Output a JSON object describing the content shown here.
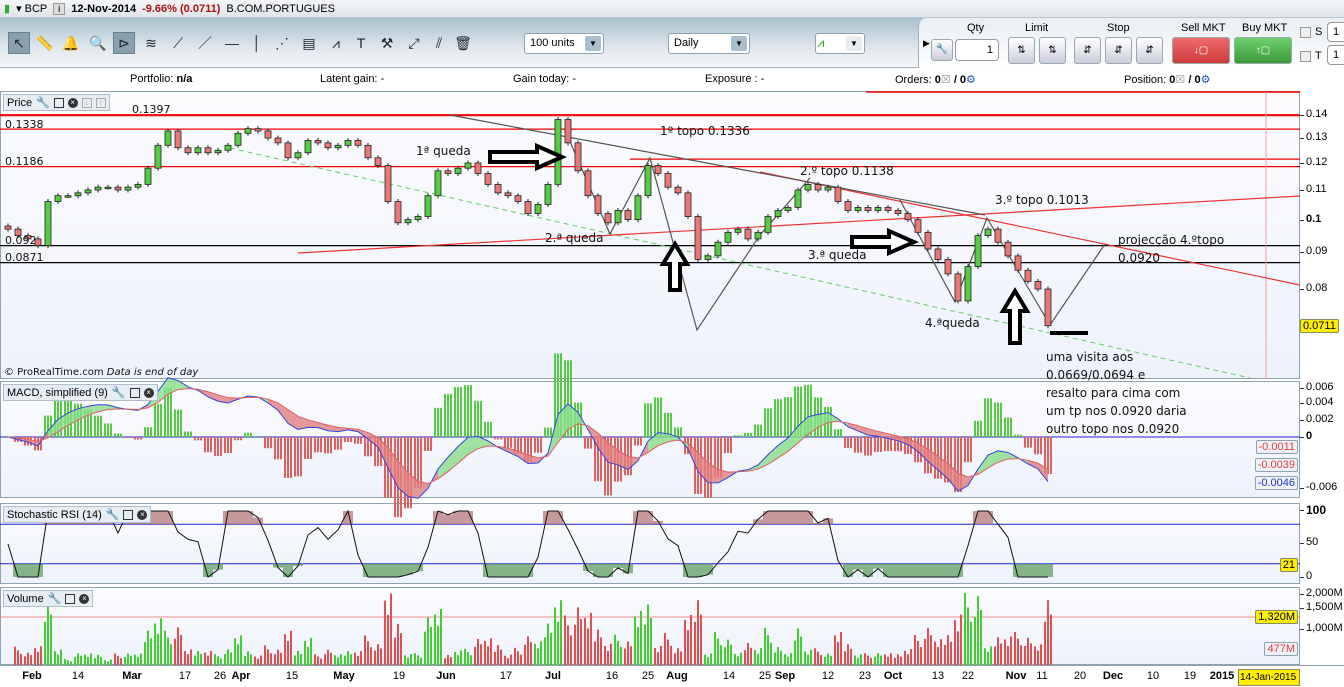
{
  "titlebar": {
    "symbol": "BCP",
    "date": "12-Nov-2014",
    "change": "-9.66% (0.0711)",
    "name": "B.COM.PORTUGUES"
  },
  "toolbar": {
    "tools": [
      "pointer-icon",
      "ruler-icon",
      "alert-bell-icon",
      "zoom-icon",
      "triangle-pattern-icon",
      "channel-icon",
      "segment-icon",
      "line-icon",
      "horizontal-line-icon",
      "vertical-line-icon",
      "fibonacci-fan-icon",
      "indicator-icon",
      "trend-icon",
      "text-icon",
      "tools-icon",
      "arrow-icon",
      "parallel-line-icon",
      "trash-icon"
    ],
    "units": "100 units",
    "period": "Daily"
  },
  "trade": {
    "qty_label": "Qty",
    "qty": "1",
    "limit_label": "Limit",
    "stop_label": "Stop",
    "sell_label": "Sell MKT",
    "buy_label": "Buy MKT",
    "s_label": "S",
    "t_label": "T",
    "s_value": "1",
    "t_value": "1"
  },
  "infobar": {
    "portfolio_label": "Portfolio:",
    "portfolio": "n/a",
    "latent_label": "Latent gain:",
    "latent": "-",
    "gain_label": "Gain today:",
    "gain": "-",
    "exposure_label": "Exposure :",
    "exposure": "-",
    "orders_label": "Orders:",
    "orders": "0",
    "orders_total": "/ 0",
    "position_label": "Position:",
    "position": "0",
    "position_total": "/ 0"
  },
  "price_panel": {
    "title": "Price",
    "level_labels": [
      "0.1397",
      "0.1338",
      "0.1186",
      "0.092",
      "0.0871"
    ],
    "ticks": [
      "0.14",
      "0.13",
      "0.12",
      "0.11",
      "0.1",
      "0.09",
      "0.08"
    ],
    "tick_values": [
      0.14,
      0.13,
      0.12,
      0.11,
      0.1,
      0.09,
      0.08
    ],
    "last_price": "0.0711",
    "footer": "© ProRealTime.com",
    "footer_note": "Data is end of day",
    "annotations": [
      "1ª queda",
      "1º topo 0.1336",
      "2.ª queda",
      "2.º topo 0.1138",
      "3.º topo 0.1013",
      "3.ª queda",
      "4.ªqueda",
      "projecção 4.ºtopo",
      "0.0920"
    ],
    "note_lines": [
      "uma visita aos",
      "0.0669/0.0694 e",
      "resalto para cima com",
      "um tp nos 0.0920 daria",
      "outro topo nos 0.0920"
    ]
  },
  "macd_panel": {
    "title": "MACD, simplified (9)",
    "ticks": [
      "0.006",
      "0.004",
      "0.002",
      "0",
      "-0.006"
    ],
    "tags": [
      "-0.0011",
      "-0.0039",
      "-0.0046"
    ]
  },
  "stoch_panel": {
    "title": "Stochastic RSI (14)",
    "ticks": [
      "100",
      "50",
      "0"
    ],
    "tag": "21"
  },
  "volume_panel": {
    "title": "Volume",
    "ticks": [
      "2,000M",
      "1,500M",
      "1,000M"
    ],
    "tags": [
      "1,320M",
      "477M"
    ]
  },
  "date_axis": [
    {
      "t": "Feb",
      "major": true
    },
    {
      "t": "14"
    },
    {
      "t": "Mar",
      "major": true
    },
    {
      "t": "17"
    },
    {
      "t": "26"
    },
    {
      "t": "Apr",
      "major": true
    },
    {
      "t": "15"
    },
    {
      "t": "May",
      "major": true
    },
    {
      "t": "19"
    },
    {
      "t": "Jun",
      "major": true
    },
    {
      "t": "17"
    },
    {
      "t": "Jul",
      "major": true
    },
    {
      "t": "16"
    },
    {
      "t": "25"
    },
    {
      "t": "Aug",
      "major": true
    },
    {
      "t": "14"
    },
    {
      "t": "25"
    },
    {
      "t": "Sep",
      "major": true
    },
    {
      "t": "12"
    },
    {
      "t": "23"
    },
    {
      "t": "Oct",
      "major": true
    },
    {
      "t": "13"
    },
    {
      "t": "22"
    },
    {
      "t": "Nov",
      "major": true
    },
    {
      "t": "11"
    },
    {
      "t": "20"
    },
    {
      "t": "Dec",
      "major": true
    },
    {
      "t": "10"
    },
    {
      "t": "19"
    },
    {
      "t": "2015",
      "major": true
    }
  ],
  "date_cursor": "14-Jan-2015",
  "chart_data": {
    "type": "candlestick",
    "scale": "log",
    "ylim": [
      0.066,
      0.145
    ],
    "closes": [
      0.097,
      0.095,
      0.094,
      0.092,
      0.106,
      0.108,
      0.108,
      0.109,
      0.11,
      0.111,
      0.111,
      0.11,
      0.111,
      0.112,
      0.118,
      0.127,
      0.133,
      0.126,
      0.124,
      0.126,
      0.124,
      0.125,
      0.127,
      0.132,
      0.134,
      0.133,
      0.13,
      0.128,
      0.122,
      0.124,
      0.129,
      0.128,
      0.126,
      0.127,
      0.129,
      0.127,
      0.122,
      0.119,
      0.106,
      0.099,
      0.1,
      0.101,
      0.108,
      0.117,
      0.116,
      0.118,
      0.12,
      0.116,
      0.112,
      0.109,
      0.108,
      0.106,
      0.102,
      0.105,
      0.112,
      0.138,
      0.128,
      0.117,
      0.108,
      0.102,
      0.099,
      0.103,
      0.1,
      0.108,
      0.119,
      0.116,
      0.111,
      0.109,
      0.101,
      0.088,
      0.089,
      0.093,
      0.096,
      0.097,
      0.094,
      0.096,
      0.101,
      0.103,
      0.104,
      0.11,
      0.112,
      0.11,
      0.111,
      0.106,
      0.103,
      0.104,
      0.103,
      0.104,
      0.103,
      0.102,
      0.1,
      0.096,
      0.091,
      0.088,
      0.084,
      0.077,
      0.086,
      0.095,
      0.097,
      0.093,
      0.089,
      0.085,
      0.082,
      0.08,
      0.0711
    ],
    "levels": {
      "red": [
        0.1397,
        0.1338,
        0.1215,
        0.1186
      ],
      "black": [
        0.092,
        0.0871
      ]
    },
    "colors": {
      "up": "#55cc44",
      "down": "#e87878",
      "level": "#ee0000",
      "trend": "#444444",
      "support": "#55bb55"
    }
  }
}
